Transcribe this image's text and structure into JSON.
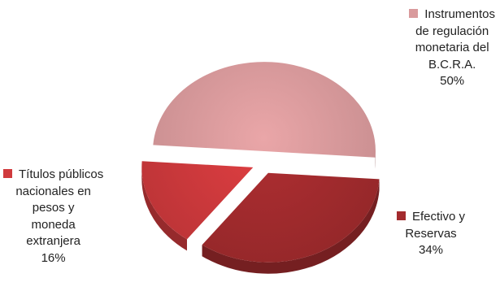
{
  "chart_data": {
    "type": "pie",
    "style": "3d-exploded",
    "legend": "labels beside slices",
    "series": [
      {
        "label_lines": [
          "Instrumentos",
          "de regulación",
          "monetaria del",
          "B.C.R.A."
        ],
        "value": 50,
        "value_label": "50%",
        "color": "#d99a9c"
      },
      {
        "label_lines": [
          "Efectivo y",
          "Reservas"
        ],
        "value": 34,
        "value_label": "34%",
        "color": "#a32b2e"
      },
      {
        "label_lines": [
          "Títulos públicos",
          "nacionales en",
          "pesos y",
          "moneda",
          "extranjera"
        ],
        "value": 16,
        "value_label": "16%",
        "color": "#d03a3d"
      }
    ]
  }
}
